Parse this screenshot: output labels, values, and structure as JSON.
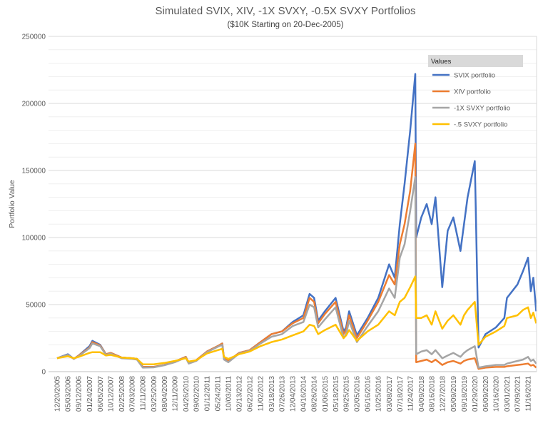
{
  "chart_data": {
    "type": "line",
    "title": "Simulated SVIX, XIV, -1X SVXY, -0.5X SVXY Portfolios",
    "subtitle": "($10K Starting on 20-Dec-2005)",
    "xlabel": "",
    "ylabel": "Portfolio Value",
    "ylim": [
      0,
      250000
    ],
    "yticks": [
      0,
      50000,
      100000,
      150000,
      200000,
      250000
    ],
    "grid": true,
    "legend": {
      "title": "Values",
      "placement": "top-right"
    },
    "xtick_labels": [
      "12/20/2005",
      "05/03/2006",
      "09/12/2006",
      "01/24/2007",
      "06/05/2007",
      "10/12/2007",
      "02/25/2008",
      "07/03/2008",
      "11/11/2008",
      "03/25/2009",
      "08/04/2009",
      "12/11/2009",
      "04/26/2010",
      "09/02/2010",
      "01/12/2011",
      "05/24/2011",
      "10/03/2011",
      "02/13/2012",
      "06/22/2012",
      "11/02/2012",
      "03/18/2013",
      "07/26/2013",
      "12/04/2013",
      "04/16/2014",
      "08/26/2014",
      "01/06/2015",
      "05/18/2015",
      "09/25/2015",
      "02/05/2016",
      "06/16/2016",
      "10/25/2016",
      "03/08/2017",
      "07/18/2017",
      "11/24/2017",
      "04/09/2018",
      "08/16/2018",
      "12/27/2018",
      "05/09/2019",
      "09/18/2019",
      "01/29/2020",
      "06/09/2020",
      "10/16/2020",
      "03/01/2021",
      "07/09/2021",
      "11/16/2021"
    ],
    "x": [
      "2005-12-20",
      "2006-05-03",
      "2006-07-15",
      "2006-09-12",
      "2007-01-24",
      "2007-03-01",
      "2007-06-05",
      "2007-08-15",
      "2007-10-12",
      "2008-02-25",
      "2008-07-03",
      "2008-09-01",
      "2008-11-11",
      "2009-03-25",
      "2009-08-04",
      "2009-12-11",
      "2010-04-26",
      "2010-06-01",
      "2010-09-02",
      "2011-01-12",
      "2011-05-24",
      "2011-07-20",
      "2011-08-10",
      "2011-10-03",
      "2012-02-13",
      "2012-06-22",
      "2012-11-02",
      "2013-03-18",
      "2013-07-26",
      "2013-12-04",
      "2014-04-16",
      "2014-07-01",
      "2014-08-26",
      "2014-10-15",
      "2015-01-06",
      "2015-05-18",
      "2015-08-24",
      "2015-09-25",
      "2015-11-01",
      "2016-02-05",
      "2016-06-16",
      "2016-10-25",
      "2017-03-08",
      "2017-05-17",
      "2017-07-18",
      "2017-09-15",
      "2017-11-24",
      "2018-01-25",
      "2018-02-06",
      "2018-04-09",
      "2018-06-15",
      "2018-08-16",
      "2018-10-01",
      "2018-12-24",
      "2019-03-01",
      "2019-05-09",
      "2019-08-05",
      "2019-09-18",
      "2019-11-01",
      "2020-01-29",
      "2020-03-16",
      "2020-06-09",
      "2020-10-16",
      "2021-01-28",
      "2021-03-01",
      "2021-07-09",
      "2021-09-15",
      "2021-11-16",
      "2021-12-20",
      "2022-01-20",
      "2022-02-25"
    ],
    "series": [
      {
        "name": "SVIX portfolio",
        "color": "#4472C4",
        "values": [
          10000,
          13000,
          9500,
          12000,
          19000,
          23000,
          20000,
          13000,
          14000,
          10500,
          10000,
          9500,
          3500,
          3500,
          5000,
          7500,
          11000,
          6500,
          8500,
          15000,
          19000,
          21000,
          10000,
          8000,
          14000,
          16000,
          22000,
          28000,
          30000,
          37000,
          42000,
          58000,
          55000,
          38000,
          45000,
          55000,
          30000,
          33000,
          45000,
          27000,
          40000,
          55000,
          80000,
          70000,
          110000,
          140000,
          180000,
          222000,
          100000,
          115000,
          125000,
          110000,
          130000,
          63000,
          105000,
          115000,
          90000,
          110000,
          130000,
          157000,
          18000,
          28000,
          33000,
          40000,
          55000,
          65000,
          75000,
          85000,
          60000,
          70000,
          45000
        ]
      },
      {
        "name": "XIV portfolio",
        "color": "#ED7D31",
        "values": [
          10000,
          12500,
          9500,
          12000,
          18000,
          22000,
          19500,
          13000,
          14000,
          10500,
          10000,
          9500,
          3500,
          3500,
          5000,
          7500,
          11000,
          6500,
          8500,
          15000,
          19000,
          21000,
          10000,
          8000,
          14000,
          16000,
          22000,
          28000,
          30000,
          36000,
          40000,
          55000,
          52000,
          36000,
          43000,
          52000,
          28000,
          31000,
          42000,
          25000,
          38000,
          52000,
          72000,
          65000,
          95000,
          110000,
          135000,
          170000,
          7000,
          8000,
          9000,
          7000,
          9000,
          5000,
          7000,
          8000,
          6000,
          8000,
          9000,
          10000,
          2000,
          3000,
          3500,
          3500,
          4000,
          5000,
          5500,
          6000,
          4500,
          5000,
          3000
        ]
      },
      {
        "name": "-1X SVXY portfolio",
        "color": "#A5A5A5",
        "values": [
          10000,
          12500,
          9500,
          11500,
          17500,
          21000,
          19000,
          12500,
          13500,
          10000,
          9500,
          9000,
          3000,
          3200,
          4800,
          7000,
          10500,
          6000,
          8000,
          14500,
          18500,
          20000,
          9000,
          7000,
          13500,
          15500,
          21000,
          26000,
          28000,
          34000,
          37000,
          50000,
          48000,
          33000,
          39000,
          48000,
          25000,
          28000,
          38000,
          22000,
          34000,
          45000,
          62000,
          55000,
          85000,
          95000,
          120000,
          145000,
          13000,
          15000,
          16000,
          13000,
          16000,
          10000,
          12000,
          14000,
          11000,
          14000,
          16000,
          19000,
          3000,
          4000,
          5000,
          5000,
          6000,
          8000,
          9000,
          11000,
          8000,
          9000,
          6000
        ]
      },
      {
        "name": "-.5 SVXY portfolio",
        "color": "#FFC000",
        "values": [
          10000,
          11500,
          10000,
          11000,
          14000,
          14500,
          14500,
          12000,
          12500,
          10500,
          10000,
          9500,
          5500,
          5500,
          6500,
          8000,
          10000,
          7500,
          8500,
          13500,
          16000,
          17000,
          11000,
          9500,
          13000,
          15000,
          19000,
          22000,
          24000,
          27000,
          30000,
          35000,
          34000,
          28000,
          31000,
          35000,
          25000,
          27000,
          31000,
          23000,
          30000,
          35000,
          45000,
          42000,
          52000,
          55000,
          63000,
          71000,
          40000,
          40000,
          42000,
          35000,
          45000,
          32000,
          38000,
          42000,
          35000,
          42000,
          46000,
          52000,
          20000,
          26000,
          30000,
          34000,
          40000,
          42000,
          46000,
          48000,
          40000,
          44000,
          36000
        ]
      }
    ]
  }
}
